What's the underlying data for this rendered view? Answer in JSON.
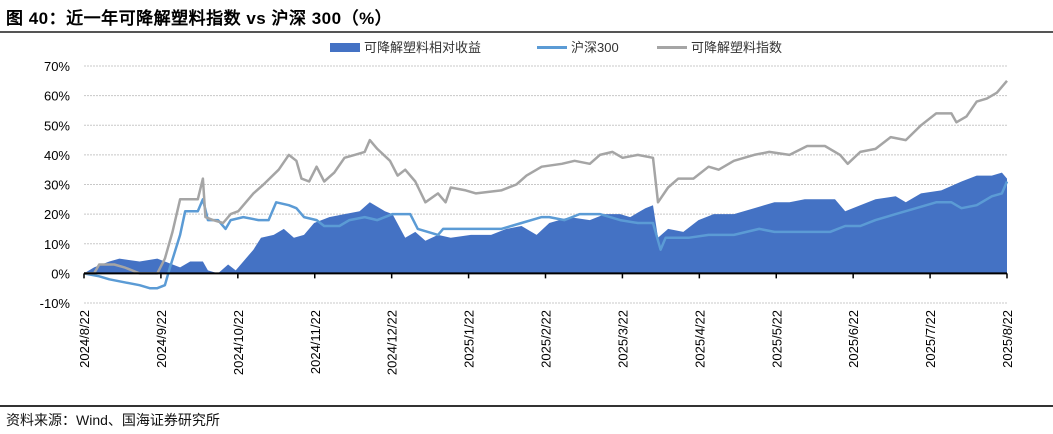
{
  "title": "图 40：近一年可降解塑料指数 vs 沪深 300（%）",
  "source": "资料来源：Wind、国海证券研究所",
  "chart_data": {
    "type": "line",
    "title": "图 40：近一年可降解塑料指数 vs 沪深 300（%）",
    "xlabel": "",
    "ylabel": "",
    "ylim": [
      -10,
      70
    ],
    "xlim": [
      "2024-08-22",
      "2025-08-22"
    ],
    "grid": true,
    "legend_position": "top",
    "y_ticks": [
      "70%",
      "60%",
      "50%",
      "40%",
      "30%",
      "20%",
      "10%",
      "0%",
      "-10%"
    ],
    "y_tick_values": [
      70,
      60,
      50,
      40,
      30,
      20,
      10,
      0,
      -10
    ],
    "x_ticks": [
      "2024/8/22",
      "2024/9/22",
      "2024/10/22",
      "2024/11/22",
      "2024/12/22",
      "2025/1/22",
      "2025/2/22",
      "2025/3/22",
      "2025/4/22",
      "2025/5/22",
      "2025/6/22",
      "2025/7/22",
      "2025/8/22"
    ],
    "series": [
      {
        "name": "可降解塑料相对收益",
        "type": "area",
        "color": "#4472C4",
        "points": [
          [
            "2024-08-22",
            0
          ],
          [
            "2024-08-26",
            2
          ],
          [
            "2024-09-01",
            4
          ],
          [
            "2024-09-05",
            5
          ],
          [
            "2024-09-13",
            4
          ],
          [
            "2024-09-20",
            5
          ],
          [
            "2024-09-23",
            4
          ],
          [
            "2024-09-29",
            2
          ],
          [
            "2024-10-03",
            4
          ],
          [
            "2024-10-08",
            4
          ],
          [
            "2024-10-10",
            1
          ],
          [
            "2024-10-14",
            0
          ],
          [
            "2024-10-18",
            3
          ],
          [
            "2024-10-21",
            1
          ],
          [
            "2024-10-24",
            4
          ],
          [
            "2024-10-28",
            8
          ],
          [
            "2024-10-31",
            12
          ],
          [
            "2024-11-05",
            13
          ],
          [
            "2024-11-09",
            15
          ],
          [
            "2024-11-13",
            12
          ],
          [
            "2024-11-17",
            13
          ],
          [
            "2024-11-21",
            17
          ],
          [
            "2024-11-27",
            19
          ],
          [
            "2024-12-03",
            20
          ],
          [
            "2024-12-09",
            21
          ],
          [
            "2024-12-13",
            24
          ],
          [
            "2024-12-19",
            21
          ],
          [
            "2024-12-22",
            20
          ],
          [
            "2024-12-27",
            12
          ],
          [
            "2024-12-31",
            14
          ],
          [
            "2025-01-04",
            11
          ],
          [
            "2025-01-09",
            13
          ],
          [
            "2025-01-14",
            12
          ],
          [
            "2025-01-22",
            13
          ],
          [
            "2025-01-30",
            13
          ],
          [
            "2025-02-05",
            15
          ],
          [
            "2025-02-11",
            16
          ],
          [
            "2025-02-17",
            13
          ],
          [
            "2025-02-22",
            17
          ],
          [
            "2025-03-02",
            19
          ],
          [
            "2025-03-10",
            18
          ],
          [
            "2025-03-16",
            20
          ],
          [
            "2025-03-22",
            20
          ],
          [
            "2025-03-26",
            19
          ],
          [
            "2025-04-01",
            22
          ],
          [
            "2025-04-04",
            23
          ],
          [
            "2025-04-06",
            12
          ],
          [
            "2025-04-10",
            15
          ],
          [
            "2025-04-16",
            14
          ],
          [
            "2025-04-22",
            18
          ],
          [
            "2025-04-28",
            20
          ],
          [
            "2025-05-06",
            20
          ],
          [
            "2025-05-14",
            22
          ],
          [
            "2025-05-22",
            24
          ],
          [
            "2025-05-28",
            24
          ],
          [
            "2025-06-03",
            25
          ],
          [
            "2025-06-09",
            25
          ],
          [
            "2025-06-15",
            25
          ],
          [
            "2025-06-19",
            21
          ],
          [
            "2025-06-25",
            23
          ],
          [
            "2025-07-01",
            25
          ],
          [
            "2025-07-09",
            26
          ],
          [
            "2025-07-13",
            24
          ],
          [
            "2025-07-19",
            27
          ],
          [
            "2025-07-27",
            28
          ],
          [
            "2025-08-04",
            31
          ],
          [
            "2025-08-10",
            33
          ],
          [
            "2025-08-16",
            33
          ],
          [
            "2025-08-20",
            34
          ],
          [
            "2025-08-22",
            32
          ]
        ]
      },
      {
        "name": "沪深300",
        "type": "line",
        "color": "#5B9BD5",
        "points": [
          [
            "2024-08-22",
            0
          ],
          [
            "2024-08-28",
            -1
          ],
          [
            "2024-09-01",
            -2
          ],
          [
            "2024-09-07",
            -3
          ],
          [
            "2024-09-13",
            -4
          ],
          [
            "2024-09-17",
            -5
          ],
          [
            "2024-09-20",
            -5
          ],
          [
            "2024-09-23",
            -4
          ],
          [
            "2024-09-25",
            2
          ],
          [
            "2024-09-29",
            13
          ],
          [
            "2024-10-01",
            21
          ],
          [
            "2024-10-06",
            21
          ],
          [
            "2024-10-08",
            25
          ],
          [
            "2024-10-10",
            18
          ],
          [
            "2024-10-14",
            18
          ],
          [
            "2024-10-17",
            15
          ],
          [
            "2024-10-19",
            18
          ],
          [
            "2024-10-24",
            19
          ],
          [
            "2024-10-30",
            18
          ],
          [
            "2024-11-03",
            18
          ],
          [
            "2024-11-06",
            24
          ],
          [
            "2024-11-11",
            23
          ],
          [
            "2024-11-14",
            22
          ],
          [
            "2024-11-17",
            19
          ],
          [
            "2024-11-22",
            18
          ],
          [
            "2024-11-25",
            16
          ],
          [
            "2024-12-01",
            16
          ],
          [
            "2024-12-05",
            18
          ],
          [
            "2024-12-11",
            19
          ],
          [
            "2024-12-16",
            18
          ],
          [
            "2024-12-22",
            20
          ],
          [
            "2024-12-29",
            20
          ],
          [
            "2025-01-01",
            15
          ],
          [
            "2025-01-05",
            14
          ],
          [
            "2025-01-09",
            13
          ],
          [
            "2025-01-11",
            15
          ],
          [
            "2025-01-22",
            15
          ],
          [
            "2025-02-03",
            15
          ],
          [
            "2025-02-11",
            17
          ],
          [
            "2025-02-19",
            19
          ],
          [
            "2025-02-22",
            19
          ],
          [
            "2025-02-28",
            18
          ],
          [
            "2025-03-06",
            20
          ],
          [
            "2025-03-14",
            20
          ],
          [
            "2025-03-22",
            18
          ],
          [
            "2025-03-29",
            17
          ],
          [
            "2025-04-04",
            17
          ],
          [
            "2025-04-07",
            8
          ],
          [
            "2025-04-09",
            12
          ],
          [
            "2025-04-18",
            12
          ],
          [
            "2025-04-26",
            13
          ],
          [
            "2025-05-06",
            13
          ],
          [
            "2025-05-16",
            15
          ],
          [
            "2025-05-22",
            14
          ],
          [
            "2025-06-01",
            14
          ],
          [
            "2025-06-07",
            14
          ],
          [
            "2025-06-13",
            14
          ],
          [
            "2025-06-19",
            16
          ],
          [
            "2025-06-25",
            16
          ],
          [
            "2025-07-01",
            18
          ],
          [
            "2025-07-09",
            20
          ],
          [
            "2025-07-17",
            22
          ],
          [
            "2025-07-25",
            24
          ],
          [
            "2025-07-31",
            24
          ],
          [
            "2025-08-04",
            22
          ],
          [
            "2025-08-10",
            23
          ],
          [
            "2025-08-16",
            26
          ],
          [
            "2025-08-20",
            27
          ],
          [
            "2025-08-22",
            31
          ]
        ]
      },
      {
        "name": "可降解塑料指数",
        "type": "line",
        "color": "#A5A5A5",
        "points": [
          [
            "2024-08-22",
            0
          ],
          [
            "2024-08-26",
            0
          ],
          [
            "2024-08-28",
            3
          ],
          [
            "2024-09-03",
            3
          ],
          [
            "2024-09-07",
            2
          ],
          [
            "2024-09-13",
            0
          ],
          [
            "2024-09-20",
            0
          ],
          [
            "2024-09-23",
            5
          ],
          [
            "2024-09-26",
            14
          ],
          [
            "2024-09-29",
            25
          ],
          [
            "2024-10-06",
            25
          ],
          [
            "2024-10-08",
            32
          ],
          [
            "2024-10-09",
            19
          ],
          [
            "2024-10-12",
            18
          ],
          [
            "2024-10-16",
            17
          ],
          [
            "2024-10-19",
            20
          ],
          [
            "2024-10-22",
            21
          ],
          [
            "2024-10-28",
            27
          ],
          [
            "2024-11-01",
            30
          ],
          [
            "2024-11-07",
            35
          ],
          [
            "2024-11-11",
            40
          ],
          [
            "2024-11-14",
            38
          ],
          [
            "2024-11-16",
            32
          ],
          [
            "2024-11-19",
            31
          ],
          [
            "2024-11-22",
            36
          ],
          [
            "2024-11-25",
            31
          ],
          [
            "2024-11-29",
            34
          ],
          [
            "2024-12-03",
            39
          ],
          [
            "2024-12-07",
            40
          ],
          [
            "2024-12-11",
            41
          ],
          [
            "2024-12-13",
            45
          ],
          [
            "2024-12-16",
            42
          ],
          [
            "2024-12-21",
            38
          ],
          [
            "2024-12-24",
            33
          ],
          [
            "2024-12-27",
            35
          ],
          [
            "2024-12-31",
            31
          ],
          [
            "2025-01-04",
            24
          ],
          [
            "2025-01-09",
            27
          ],
          [
            "2025-01-12",
            24
          ],
          [
            "2025-01-14",
            29
          ],
          [
            "2025-01-20",
            28
          ],
          [
            "2025-01-24",
            27
          ],
          [
            "2025-02-03",
            28
          ],
          [
            "2025-02-09",
            30
          ],
          [
            "2025-02-13",
            33
          ],
          [
            "2025-02-19",
            36
          ],
          [
            "2025-02-27",
            37
          ],
          [
            "2025-03-04",
            38
          ],
          [
            "2025-03-10",
            37
          ],
          [
            "2025-03-14",
            40
          ],
          [
            "2025-03-19",
            41
          ],
          [
            "2025-03-23",
            39
          ],
          [
            "2025-03-29",
            40
          ],
          [
            "2025-04-04",
            39
          ],
          [
            "2025-04-06",
            24
          ],
          [
            "2025-04-10",
            29
          ],
          [
            "2025-04-14",
            32
          ],
          [
            "2025-04-20",
            32
          ],
          [
            "2025-04-26",
            36
          ],
          [
            "2025-04-30",
            35
          ],
          [
            "2025-05-06",
            38
          ],
          [
            "2025-05-14",
            40
          ],
          [
            "2025-05-20",
            41
          ],
          [
            "2025-05-28",
            40
          ],
          [
            "2025-06-04",
            43
          ],
          [
            "2025-06-11",
            43
          ],
          [
            "2025-06-17",
            40
          ],
          [
            "2025-06-20",
            37
          ],
          [
            "2025-06-25",
            41
          ],
          [
            "2025-07-01",
            42
          ],
          [
            "2025-07-07",
            46
          ],
          [
            "2025-07-13",
            45
          ],
          [
            "2025-07-19",
            50
          ],
          [
            "2025-07-25",
            54
          ],
          [
            "2025-07-31",
            54
          ],
          [
            "2025-08-02",
            51
          ],
          [
            "2025-08-06",
            53
          ],
          [
            "2025-08-10",
            58
          ],
          [
            "2025-08-14",
            59
          ],
          [
            "2025-08-18",
            61
          ],
          [
            "2025-08-22",
            65
          ]
        ]
      }
    ]
  }
}
